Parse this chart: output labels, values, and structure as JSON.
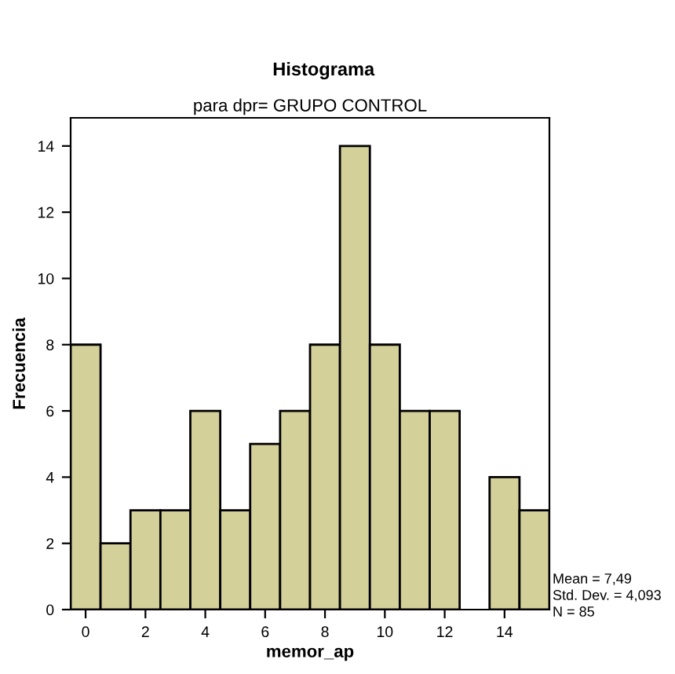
{
  "chart_data": {
    "type": "histogram",
    "title": "Histograma",
    "subtitle": "para dpr= GRUPO CONTROL",
    "xlabel": "memor_ap",
    "ylabel": "Frecuencia",
    "bins": [
      -0.5,
      0.5,
      1.5,
      2.5,
      3.5,
      4.5,
      5.5,
      6.5,
      7.5,
      8.5,
      9.5,
      10.5,
      11.5,
      12.5,
      13.5,
      14.5,
      15.5
    ],
    "values": [
      8,
      2,
      3,
      3,
      6,
      3,
      5,
      6,
      8,
      14,
      8,
      6,
      6,
      0,
      4,
      3
    ],
    "color": "#d4d09a",
    "xlim": [
      -0.5,
      15.5
    ],
    "xticks": [
      0,
      2,
      4,
      6,
      8,
      10,
      12,
      14
    ],
    "ylim": [
      0,
      14.85
    ],
    "yticks": [
      0,
      2,
      4,
      6,
      8,
      10,
      12,
      14
    ],
    "grid": false,
    "legend": false,
    "annotations": [
      "Mean = 7,49",
      "Std. Dev. = 4,093",
      "N = 85"
    ]
  }
}
